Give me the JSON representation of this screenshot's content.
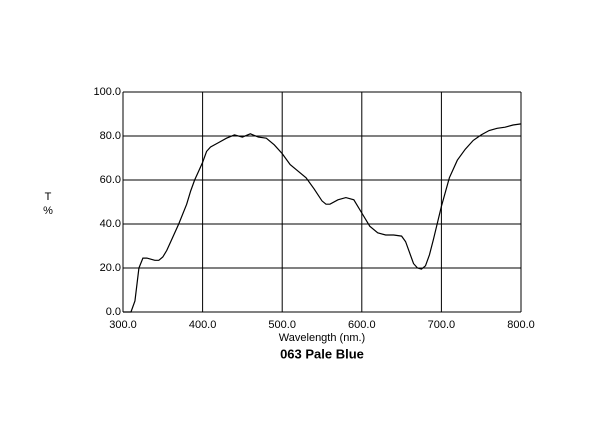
{
  "chart_data": {
    "type": "line",
    "title": "063 Pale Blue",
    "xlabel": "Wavelength (nm.)",
    "ylabel": [
      "T",
      "%"
    ],
    "color": "#000000",
    "grid": true,
    "xlim": [
      300,
      800
    ],
    "ylim": [
      0,
      100
    ],
    "xticks": [
      {
        "value": 300,
        "label": "300.0"
      },
      {
        "value": 400,
        "label": "400.0"
      },
      {
        "value": 500,
        "label": "500.0"
      },
      {
        "value": 600,
        "label": "600.0"
      },
      {
        "value": 700,
        "label": "700.0"
      },
      {
        "value": 800,
        "label": "800.0"
      }
    ],
    "yticks": [
      {
        "value": 0,
        "label": "0.0"
      },
      {
        "value": 20,
        "label": "20.0"
      },
      {
        "value": 40,
        "label": "40.0"
      },
      {
        "value": 60,
        "label": "60.0"
      },
      {
        "value": 80,
        "label": "80.0"
      },
      {
        "value": 100,
        "label": "100.0"
      }
    ],
    "x": [
      300,
      305,
      310,
      315,
      320,
      325,
      330,
      335,
      340,
      345,
      350,
      355,
      360,
      370,
      380,
      385,
      390,
      395,
      400,
      405,
      410,
      420,
      430,
      440,
      450,
      460,
      470,
      480,
      490,
      500,
      510,
      520,
      530,
      540,
      550,
      555,
      560,
      570,
      580,
      590,
      600,
      610,
      620,
      630,
      640,
      650,
      655,
      660,
      665,
      670,
      675,
      680,
      685,
      690,
      700,
      710,
      720,
      730,
      740,
      750,
      760,
      770,
      780,
      790,
      800
    ],
    "values": [
      0,
      0,
      0,
      5,
      20,
      24.5,
      24.5,
      24,
      23.5,
      23.5,
      25,
      28,
      32,
      40,
      49,
      55,
      60,
      64,
      68,
      73,
      75,
      77,
      79,
      80.5,
      79.5,
      81,
      79.5,
      79,
      76,
      72,
      67,
      64,
      61,
      56,
      50.5,
      49,
      49,
      51,
      52,
      51,
      45,
      39,
      36,
      35,
      35,
      34.5,
      32,
      27,
      22,
      20,
      19.5,
      21,
      26,
      33,
      48,
      61,
      69,
      74,
      78,
      80.5,
      82.5,
      83.5,
      84,
      85,
      85.5
    ]
  }
}
